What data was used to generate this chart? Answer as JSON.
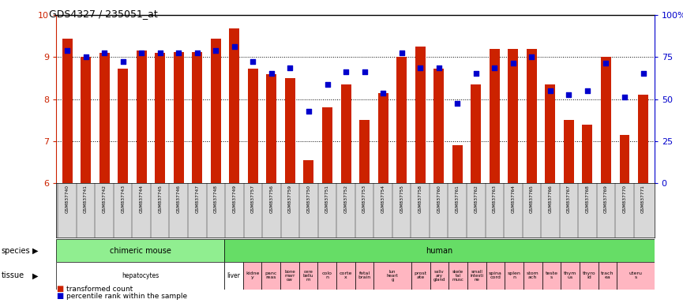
{
  "title": "GDS4327 / 235051_at",
  "samples": [
    "GSM837740",
    "GSM837741",
    "GSM837742",
    "GSM837743",
    "GSM837744",
    "GSM837745",
    "GSM837746",
    "GSM837747",
    "GSM837748",
    "GSM837749",
    "GSM837757",
    "GSM837756",
    "GSM837759",
    "GSM837750",
    "GSM837751",
    "GSM837752",
    "GSM837753",
    "GSM837754",
    "GSM837755",
    "GSM837758",
    "GSM837760",
    "GSM837761",
    "GSM837762",
    "GSM837763",
    "GSM837764",
    "GSM837765",
    "GSM837766",
    "GSM837767",
    "GSM837768",
    "GSM837769",
    "GSM837770",
    "GSM837771"
  ],
  "bar_heights": [
    9.45,
    9.0,
    9.1,
    8.72,
    9.15,
    9.1,
    9.12,
    9.12,
    9.45,
    9.68,
    8.72,
    8.6,
    8.5,
    6.55,
    7.8,
    8.35,
    7.5,
    8.15,
    9.0,
    9.25,
    8.72,
    6.9,
    8.35,
    9.2,
    9.2,
    9.2,
    8.35,
    7.5,
    7.4,
    9.0,
    7.15,
    8.1
  ],
  "blue_dots": [
    9.15,
    9.0,
    9.1,
    8.9,
    9.1,
    9.1,
    9.1,
    9.1,
    9.15,
    9.25,
    8.9,
    8.62,
    8.75,
    7.72,
    8.35,
    8.65,
    8.65,
    8.15,
    9.1,
    8.75,
    8.75,
    7.9,
    8.62,
    8.75,
    8.85,
    9.0,
    8.2,
    8.1,
    8.2,
    8.85,
    8.05,
    8.62
  ],
  "species_groups": [
    {
      "label": "chimeric mouse",
      "start": 0,
      "end": 9,
      "color": "#90EE90"
    },
    {
      "label": "human",
      "start": 9,
      "end": 32,
      "color": "#66DD66"
    }
  ],
  "tissue_groups": [
    {
      "label": "hepatocytes",
      "start": 0,
      "end": 9,
      "color": "#ffffff",
      "pink": false
    },
    {
      "label": "liver",
      "start": 9,
      "end": 10,
      "color": "#ffffff",
      "pink": false
    },
    {
      "label": "kidne\ny",
      "start": 10,
      "end": 11,
      "color": "#FFB6C1",
      "pink": true
    },
    {
      "label": "panc\nreas",
      "start": 11,
      "end": 12,
      "color": "#FFB6C1",
      "pink": true
    },
    {
      "label": "bone\nmarr\now",
      "start": 12,
      "end": 13,
      "color": "#FFB6C1",
      "pink": true
    },
    {
      "label": "cere\nbellu\nm",
      "start": 13,
      "end": 14,
      "color": "#FFB6C1",
      "pink": true
    },
    {
      "label": "colo\nn",
      "start": 14,
      "end": 15,
      "color": "#FFB6C1",
      "pink": true
    },
    {
      "label": "corte\nx",
      "start": 15,
      "end": 16,
      "color": "#FFB6C1",
      "pink": true
    },
    {
      "label": "fetal\nbrain",
      "start": 16,
      "end": 17,
      "color": "#FFB6C1",
      "pink": true
    },
    {
      "label": "lun\nheart\ng",
      "start": 17,
      "end": 19,
      "color": "#FFB6C1",
      "pink": true
    },
    {
      "label": "prost\nate",
      "start": 19,
      "end": 20,
      "color": "#FFB6C1",
      "pink": true
    },
    {
      "label": "saliv\nary\ngland",
      "start": 20,
      "end": 21,
      "color": "#FFB6C1",
      "pink": true
    },
    {
      "label": "skele\ntal\nmusc",
      "start": 21,
      "end": 22,
      "color": "#FFB6C1",
      "pink": true
    },
    {
      "label": "small\nintesti\nne",
      "start": 22,
      "end": 23,
      "color": "#FFB6C1",
      "pink": true
    },
    {
      "label": "spina\ncord",
      "start": 23,
      "end": 24,
      "color": "#FFB6C1",
      "pink": true
    },
    {
      "label": "splen\nn",
      "start": 24,
      "end": 25,
      "color": "#FFB6C1",
      "pink": true
    },
    {
      "label": "stom\nach",
      "start": 25,
      "end": 26,
      "color": "#FFB6C1",
      "pink": true
    },
    {
      "label": "teste\ns",
      "start": 26,
      "end": 27,
      "color": "#FFB6C1",
      "pink": true
    },
    {
      "label": "thym\nus",
      "start": 27,
      "end": 28,
      "color": "#FFB6C1",
      "pink": true
    },
    {
      "label": "thyro\nid",
      "start": 28,
      "end": 29,
      "color": "#FFB6C1",
      "pink": true
    },
    {
      "label": "trach\nea",
      "start": 29,
      "end": 30,
      "color": "#FFB6C1",
      "pink": true
    },
    {
      "label": "uteru\ns",
      "start": 30,
      "end": 32,
      "color": "#FFB6C1",
      "pink": true
    }
  ],
  "ylim": [
    6,
    10
  ],
  "bar_color": "#CC2200",
  "dot_color": "#0000CC",
  "bg_color": "#ffffff",
  "left_axis_color": "#CC2200",
  "right_axis_color": "#0000CC",
  "xtick_bg": "#D8D8D8"
}
